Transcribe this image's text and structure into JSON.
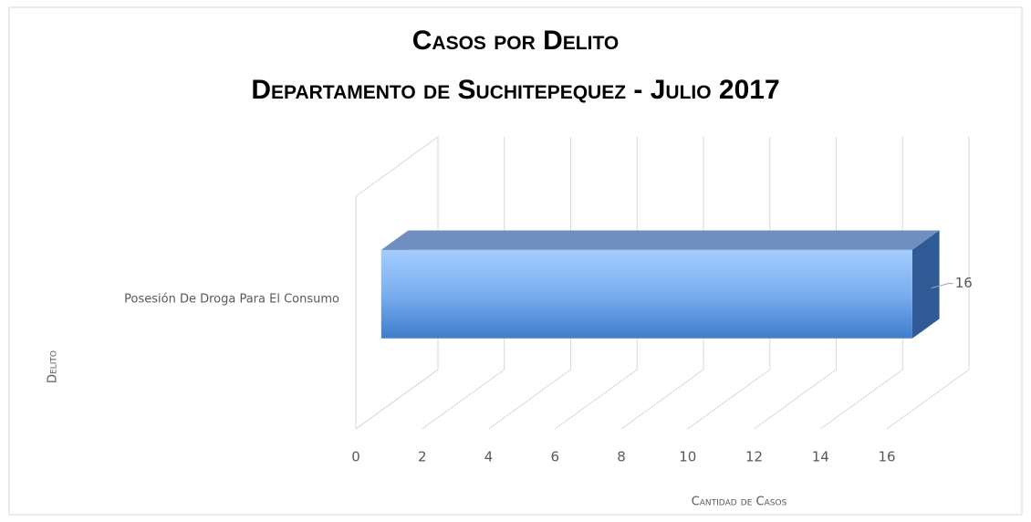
{
  "chart_data": {
    "type": "bar3d_horizontal",
    "title": "Casos por Delito",
    "subtitle": "Departamento de Suchitepequez - Julio 2017",
    "x_label": "Cantidad de Casos",
    "y_label": "Delito",
    "categories": [
      "Posesión De Droga Para El Consumo"
    ],
    "values": [
      16
    ],
    "color": "#5b9bd5",
    "xlim": [
      0,
      16
    ],
    "xticks": [
      0,
      2,
      4,
      6,
      8,
      10,
      12,
      14,
      16
    ],
    "grid": true
  }
}
